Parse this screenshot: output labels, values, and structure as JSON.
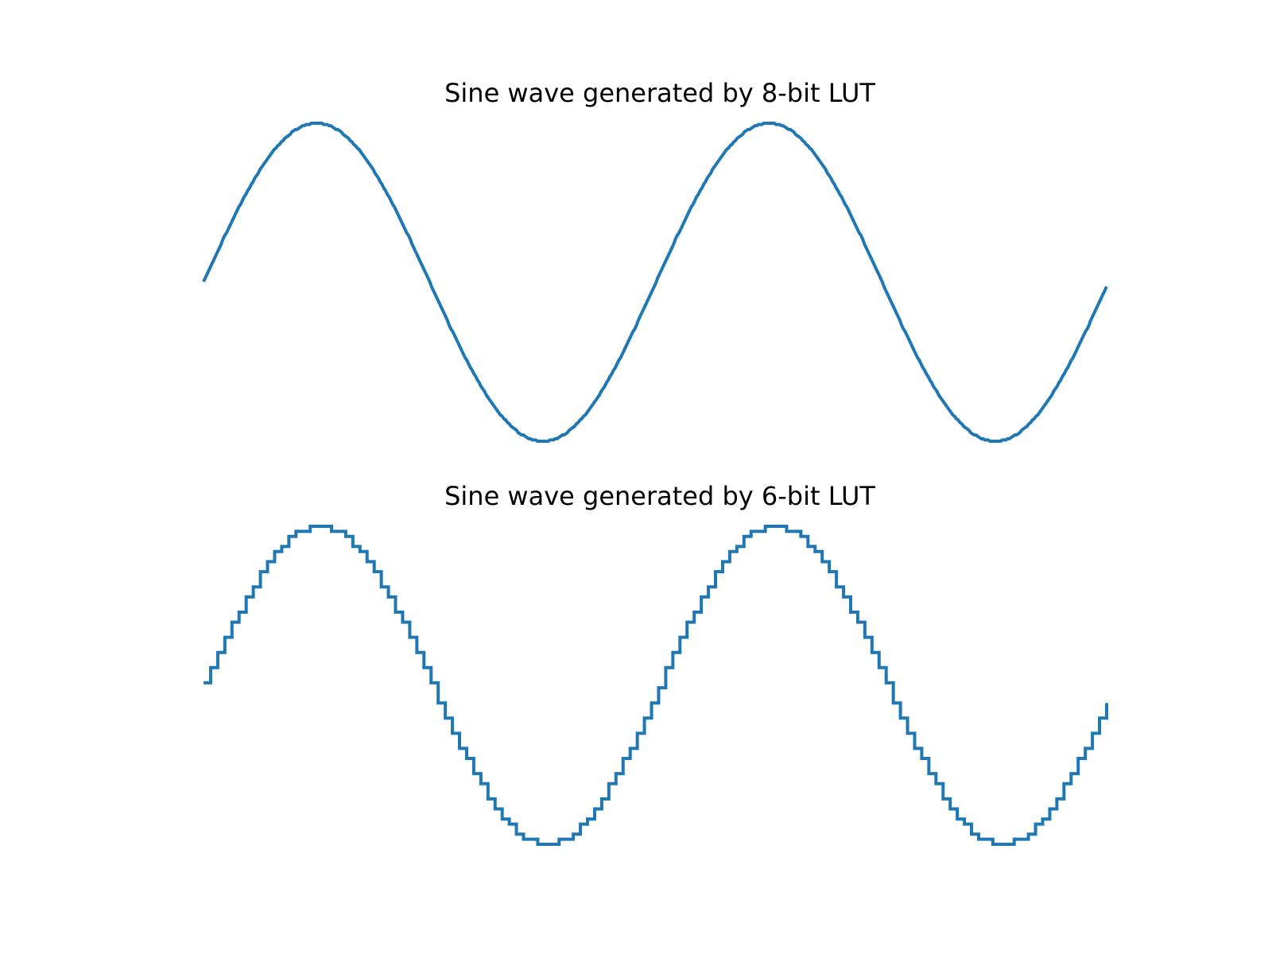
{
  "chart_data": [
    {
      "type": "line",
      "title": "Sine wave generated by 8-bit LUT",
      "axes_visible": false,
      "grid": false,
      "legend": "none",
      "x": {
        "start": 0,
        "end": 511,
        "step": 1
      },
      "ylim": [
        -1.05,
        1.05
      ],
      "series": [
        {
          "function": "sin",
          "cycles": 2,
          "samples_per_cycle": 256,
          "bit_depth": 8,
          "step": false,
          "amplitude": 1,
          "color": "#1f77b4"
        }
      ]
    },
    {
      "type": "line",
      "title": "Sine wave generated by 6-bit LUT",
      "axes_visible": false,
      "grid": false,
      "legend": "none",
      "x": {
        "start": 0,
        "end": 127,
        "step": 1
      },
      "ylim": [
        -1.05,
        1.05
      ],
      "series": [
        {
          "function": "sin",
          "cycles": 2,
          "samples_per_cycle": 64,
          "bit_depth": 6,
          "step": true,
          "amplitude": 1,
          "color": "#1f77b4"
        }
      ]
    }
  ]
}
